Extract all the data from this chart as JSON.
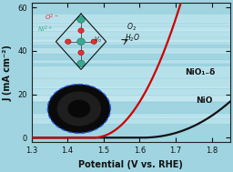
{
  "background_color": "#9fd4e0",
  "plot_bg_color": "#9fd4e0",
  "xlim": [
    1.3,
    1.85
  ],
  "ylim": [
    -2,
    62
  ],
  "xticks": [
    1.3,
    1.4,
    1.5,
    1.6,
    1.7,
    1.8
  ],
  "yticks": [
    0,
    20,
    40,
    60
  ],
  "xlabel": "Potential (V vs. RHE)",
  "ylabel": "J (mA cm⁻²)",
  "nio_color": "#111111",
  "niox_color": "#cc0000",
  "nio_label": "NiO",
  "niox_label": "NiO₁₋δ",
  "label_fontsize": 6.5,
  "tick_fontsize": 6,
  "axis_fontsize": 7,
  "spine_color": "#222222",
  "line_width": 1.6,
  "ni_color": "#3aaa8e",
  "o_color": "#e63030",
  "bubble_color": "#c8eaf2",
  "bubble_edge": "#88c8dc"
}
